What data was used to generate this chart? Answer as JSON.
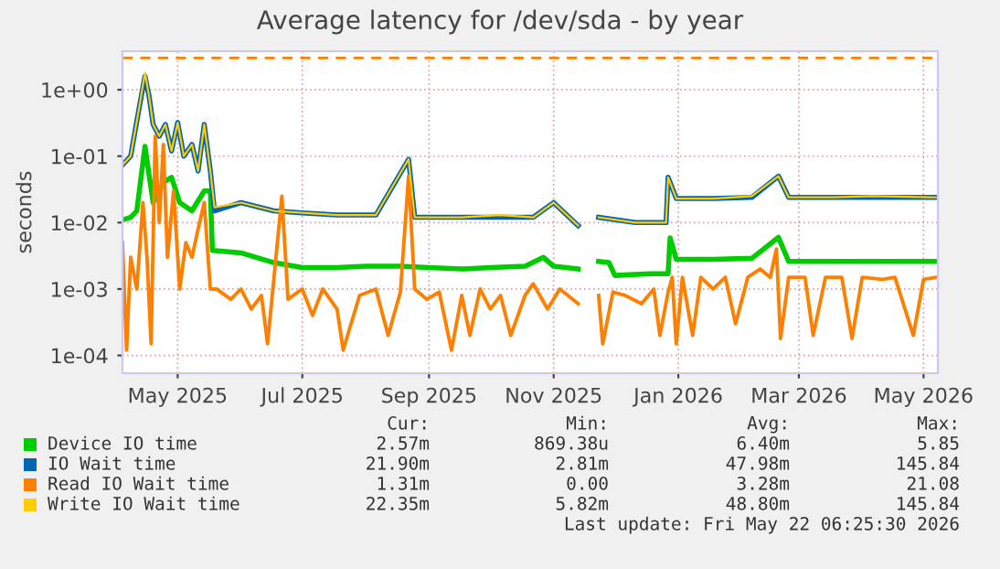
{
  "chart_data": {
    "type": "line",
    "title": "Average latency for /dev/sda - by year",
    "ylabel": "seconds",
    "log": "y",
    "grid": true,
    "legend": "bottom",
    "line_style": "solid",
    "marker": "none",
    "xlim": [
      "2025-04-18",
      "2026-05-22"
    ],
    "ylim": [
      5.4e-05,
      3.8
    ],
    "xticks": [
      {
        "value": "2025-05-15",
        "label": "May 2025"
      },
      {
        "value": "2025-07-15",
        "label": "Jul 2025"
      },
      {
        "value": "2025-09-15",
        "label": "Sep 2025"
      },
      {
        "value": "2025-11-15",
        "label": "Nov 2025"
      },
      {
        "value": "2026-01-15",
        "label": "Jan 2026"
      },
      {
        "value": "2026-03-15",
        "label": "Mar 2026"
      },
      {
        "value": "2026-05-15",
        "label": "May 2026"
      }
    ],
    "yticks": [
      {
        "value": 0.0001,
        "label": "1e-04"
      },
      {
        "value": 0.001,
        "label": "1e-03"
      },
      {
        "value": 0.01,
        "label": "1e-02"
      },
      {
        "value": 0.1,
        "label": "1e-01"
      },
      {
        "value": 1,
        "label": "1e+00"
      }
    ],
    "ref_lines": [
      {
        "axis": "y",
        "value": 3,
        "color": "#ff8000",
        "line_style": "dashed"
      }
    ],
    "series": [
      {
        "name": "Device IO time",
        "color": "#00cc00",
        "x": [
          "2025-04-18",
          "2025-04-22",
          "2025-04-25",
          "2025-04-29",
          "2025-05-03",
          "2025-05-08",
          "2025-05-12",
          "2025-05-16",
          "2025-05-22",
          "2025-05-28",
          "2025-05-31",
          "2025-06-01",
          "2025-06-15",
          "2025-07-01",
          "2025-07-15",
          "2025-08-01",
          "2025-08-15",
          "2025-09-01",
          "2025-09-15",
          "2025-10-01",
          "2025-10-15",
          "2025-11-01",
          "2025-11-10",
          "2025-11-15",
          "2025-11-27",
          "2025-12-02",
          "2025-12-07",
          "2025-12-12",
          "2025-12-15",
          "2026-01-01",
          "2026-01-10",
          "2026-01-11",
          "2026-01-14",
          "2026-02-01",
          "2026-02-20",
          "2026-03-05",
          "2026-03-10",
          "2026-04-01",
          "2026-04-20",
          "2026-05-21"
        ],
        "values": [
          0.011,
          0.012,
          0.015,
          0.14,
          0.02,
          0.04,
          0.048,
          0.02,
          0.015,
          0.03,
          0.03,
          0.0038,
          0.0035,
          0.0025,
          0.0021,
          0.0021,
          0.0022,
          0.0022,
          0.0021,
          0.002,
          0.0021,
          0.0022,
          0.003,
          0.0022,
          0.002,
          null,
          0.0026,
          0.0025,
          0.0016,
          0.0017,
          0.0017,
          0.0059,
          0.0028,
          0.0028,
          0.0029,
          0.006,
          0.0026,
          0.0026,
          0.0026,
          0.0026
        ]
      },
      {
        "name": "IO Wait time",
        "color": "#0066b3",
        "x": [
          "2025-04-18",
          "2025-04-22",
          "2025-04-26",
          "2025-04-29",
          "2025-05-01",
          "2025-05-03",
          "2025-05-06",
          "2025-05-09",
          "2025-05-12",
          "2025-05-15",
          "2025-05-18",
          "2025-05-22",
          "2025-05-25",
          "2025-05-28",
          "2025-05-31",
          "2025-06-02",
          "2025-06-15",
          "2025-07-01",
          "2025-07-15",
          "2025-08-01",
          "2025-08-20",
          "2025-09-05",
          "2025-09-08",
          "2025-10-01",
          "2025-10-20",
          "2025-11-05",
          "2025-11-15",
          "2025-11-27",
          "2025-12-02",
          "2025-12-07",
          "2025-12-25",
          "2026-01-09",
          "2026-01-10",
          "2026-01-14",
          "2026-02-01",
          "2026-02-20",
          "2026-03-05",
          "2026-03-10",
          "2026-04-01",
          "2026-04-20",
          "2026-05-21"
        ],
        "values": [
          0.074,
          0.1,
          0.5,
          1.6,
          0.8,
          0.3,
          0.2,
          0.3,
          0.12,
          0.32,
          0.1,
          0.15,
          0.06,
          0.3,
          0.06,
          0.015,
          0.02,
          0.015,
          0.014,
          0.013,
          0.013,
          0.09,
          0.012,
          0.012,
          0.012,
          0.012,
          0.02,
          0.009,
          null,
          0.012,
          0.01,
          0.01,
          0.048,
          0.023,
          0.023,
          0.024,
          0.05,
          0.024,
          0.024,
          0.024,
          0.024
        ]
      },
      {
        "name": "Read IO Wait time",
        "color": "#ff8000",
        "x": [
          "2025-04-18",
          "2025-04-20",
          "2025-04-22",
          "2025-04-25",
          "2025-04-28",
          "2025-04-30",
          "2025-05-02",
          "2025-05-04",
          "2025-05-06",
          "2025-05-08",
          "2025-05-10",
          "2025-05-13",
          "2025-05-16",
          "2025-05-19",
          "2025-05-22",
          "2025-05-25",
          "2025-05-28",
          "2025-05-31",
          "2025-06-03",
          "2025-06-10",
          "2025-06-15",
          "2025-06-20",
          "2025-06-25",
          "2025-06-28",
          "2025-07-05",
          "2025-07-08",
          "2025-07-15",
          "2025-07-20",
          "2025-07-25",
          "2025-08-01",
          "2025-08-04",
          "2025-08-12",
          "2025-08-20",
          "2025-08-26",
          "2025-09-01",
          "2025-09-05",
          "2025-09-08",
          "2025-09-14",
          "2025-09-20",
          "2025-09-26",
          "2025-10-01",
          "2025-10-05",
          "2025-10-10",
          "2025-10-15",
          "2025-10-20",
          "2025-10-25",
          "2025-11-01",
          "2025-11-05",
          "2025-11-12",
          "2025-11-18",
          "2025-11-22",
          "2025-11-27",
          "2025-12-02",
          "2025-12-07",
          "2025-12-09",
          "2025-12-14",
          "2025-12-20",
          "2025-12-28",
          "2026-01-03",
          "2026-01-06",
          "2026-01-10",
          "2026-01-12",
          "2026-01-14",
          "2026-01-17",
          "2026-01-22",
          "2026-01-26",
          "2026-02-01",
          "2026-02-07",
          "2026-02-12",
          "2026-02-18",
          "2026-02-24",
          "2026-03-01",
          "2026-03-04",
          "2026-03-06",
          "2026-03-10",
          "2026-03-18",
          "2026-03-22",
          "2026-03-28",
          "2026-04-05",
          "2026-04-10",
          "2026-04-15",
          "2026-04-25",
          "2026-05-01",
          "2026-05-10",
          "2026-05-15",
          "2026-05-21"
        ],
        "values": [
          0.005,
          0.00012,
          0.003,
          0.001,
          0.02,
          0.003,
          0.00015,
          0.2,
          0.01,
          0.15,
          0.003,
          0.03,
          0.001,
          0.005,
          0.003,
          0.008,
          0.02,
          0.001,
          0.001,
          0.0007,
          0.001,
          0.0005,
          0.0008,
          0.00015,
          0.025,
          0.0007,
          0.001,
          0.0004,
          0.001,
          0.0005,
          0.00012,
          0.0008,
          0.001,
          0.0002,
          0.0009,
          0.05,
          0.001,
          0.0007,
          0.0009,
          0.00012,
          0.0008,
          0.0002,
          0.001,
          0.0005,
          0.0008,
          0.0002,
          0.0008,
          0.0012,
          0.0005,
          0.001,
          0.0008,
          0.0006,
          null,
          0.0008,
          0.00015,
          0.0009,
          0.0008,
          0.0006,
          0.001,
          0.0002,
          0.0009,
          0.0015,
          0.00015,
          0.0015,
          0.0002,
          0.0015,
          0.001,
          0.0015,
          0.0003,
          0.0015,
          0.002,
          0.0015,
          0.004,
          0.00018,
          0.0015,
          0.0015,
          0.0002,
          0.0015,
          0.0015,
          0.00018,
          0.0015,
          0.0014,
          0.0015,
          0.0002,
          0.0014,
          0.0015
        ]
      },
      {
        "name": "Write IO Wait time",
        "color": "#ffcc00",
        "x": [
          "2025-04-18",
          "2025-04-22",
          "2025-04-26",
          "2025-04-29",
          "2025-05-01",
          "2025-05-03",
          "2025-05-06",
          "2025-05-09",
          "2025-05-12",
          "2025-05-15",
          "2025-05-18",
          "2025-05-22",
          "2025-05-25",
          "2025-05-28",
          "2025-05-31",
          "2025-06-02",
          "2025-06-15",
          "2025-07-01",
          "2025-07-15",
          "2025-08-01",
          "2025-08-20",
          "2025-09-05",
          "2025-09-08",
          "2025-10-01",
          "2025-10-20",
          "2025-11-05",
          "2025-11-15",
          "2025-11-27",
          "2025-12-02",
          "2025-12-07",
          "2025-12-25",
          "2026-01-09",
          "2026-01-10",
          "2026-01-14",
          "2026-02-01",
          "2026-02-20",
          "2026-03-05",
          "2026-03-10",
          "2026-04-01",
          "2026-04-20",
          "2026-05-21"
        ],
        "values": [
          0.074,
          0.1,
          0.5,
          1.8,
          0.8,
          0.3,
          0.2,
          0.3,
          0.12,
          0.32,
          0.1,
          0.15,
          0.06,
          0.3,
          0.06,
          0.017,
          0.02,
          0.015,
          0.014,
          0.013,
          0.013,
          0.09,
          0.012,
          0.012,
          0.013,
          0.012,
          0.02,
          0.009,
          null,
          0.012,
          0.01,
          0.01,
          0.048,
          0.023,
          0.023,
          0.025,
          0.05,
          0.024,
          0.024,
          0.025,
          0.024
        ]
      }
    ],
    "annotations": [
      "Cur:",
      "Min:",
      "Avg:",
      "Max:",
      "2.57m",
      "869.38u",
      "6.40m",
      "5.85",
      "21.90m",
      "2.81m",
      "47.98m",
      "145.84",
      "1.31m",
      "0.00",
      "3.28m",
      "21.08",
      "22.35m",
      "5.82m",
      "48.80m",
      "145.84",
      "Last update: Fri May 22 06:25:30 2026"
    ]
  }
}
